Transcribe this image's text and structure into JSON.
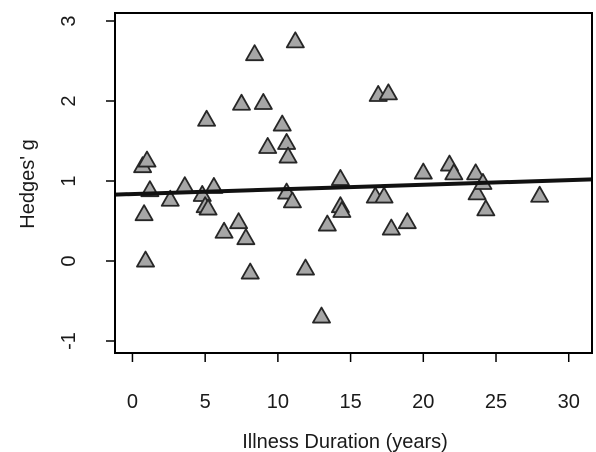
{
  "chart_data": {
    "type": "scatter",
    "title": "",
    "xlabel": "Illness Duration (years)",
    "ylabel": "Hedges' g",
    "xlim": [
      -1.2,
      31.6
    ],
    "ylim": [
      -1.15,
      3.1
    ],
    "xticks": [
      0,
      5,
      10,
      15,
      20,
      25,
      30
    ],
    "xtick_labels": [
      "0",
      "5",
      "10",
      "15",
      "20",
      "25",
      "30"
    ],
    "yticks": [
      -1,
      0,
      1,
      2,
      3
    ],
    "ytick_labels": [
      "-1",
      "0",
      "1",
      "2",
      "3"
    ],
    "grid": false,
    "legend": "none",
    "marker": "triangle",
    "colors": {
      "marker_fill": "#a6a6a6",
      "marker_edge": "#262626",
      "line": "#111111",
      "axis": "#000000"
    },
    "points": [
      {
        "x": 0.7,
        "y": 1.18
      },
      {
        "x": 0.8,
        "y": 0.58
      },
      {
        "x": 1.0,
        "y": 1.25
      },
      {
        "x": 0.9,
        "y": 0.0
      },
      {
        "x": 1.2,
        "y": 0.88
      },
      {
        "x": 2.6,
        "y": 0.76
      },
      {
        "x": 3.6,
        "y": 0.93
      },
      {
        "x": 4.8,
        "y": 0.82
      },
      {
        "x": 5.0,
        "y": 0.68
      },
      {
        "x": 5.1,
        "y": 1.76
      },
      {
        "x": 5.2,
        "y": 0.65
      },
      {
        "x": 5.6,
        "y": 0.92
      },
      {
        "x": 6.3,
        "y": 0.36
      },
      {
        "x": 7.3,
        "y": 0.48
      },
      {
        "x": 7.5,
        "y": 1.96
      },
      {
        "x": 7.8,
        "y": 0.28
      },
      {
        "x": 8.1,
        "y": -0.15
      },
      {
        "x": 8.4,
        "y": 2.58
      },
      {
        "x": 9.0,
        "y": 1.97
      },
      {
        "x": 9.3,
        "y": 1.42
      },
      {
        "x": 10.3,
        "y": 1.7
      },
      {
        "x": 10.6,
        "y": 1.47
      },
      {
        "x": 10.6,
        "y": 0.85
      },
      {
        "x": 10.7,
        "y": 1.3
      },
      {
        "x": 11.0,
        "y": 0.74
      },
      {
        "x": 11.2,
        "y": 2.74
      },
      {
        "x": 11.9,
        "y": -0.1
      },
      {
        "x": 13.0,
        "y": -0.7
      },
      {
        "x": 13.4,
        "y": 0.45
      },
      {
        "x": 14.3,
        "y": 1.02
      },
      {
        "x": 14.3,
        "y": 0.68
      },
      {
        "x": 14.4,
        "y": 0.62
      },
      {
        "x": 16.7,
        "y": 0.8
      },
      {
        "x": 16.9,
        "y": 2.07
      },
      {
        "x": 17.3,
        "y": 0.8
      },
      {
        "x": 17.6,
        "y": 2.09
      },
      {
        "x": 17.8,
        "y": 0.4
      },
      {
        "x": 18.9,
        "y": 0.48
      },
      {
        "x": 20.0,
        "y": 1.1
      },
      {
        "x": 21.8,
        "y": 1.2
      },
      {
        "x": 22.1,
        "y": 1.09
      },
      {
        "x": 23.6,
        "y": 1.09
      },
      {
        "x": 23.7,
        "y": 0.84
      },
      {
        "x": 24.1,
        "y": 0.97
      },
      {
        "x": 24.3,
        "y": 0.64
      },
      {
        "x": 28.0,
        "y": 0.81
      }
    ],
    "regression_line": {
      "x": [
        -1.2,
        31.6
      ],
      "y": [
        0.83,
        1.02
      ]
    }
  }
}
